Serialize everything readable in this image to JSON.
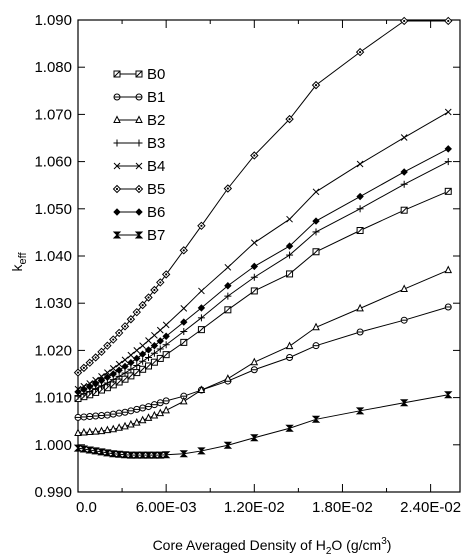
{
  "chart_data": {
    "type": "line",
    "xlabel_parts": [
      "Core Averaged Density of H",
      "2",
      "O (g/cm",
      "3",
      ")"
    ],
    "ylabel_parts": [
      "k",
      "eff"
    ],
    "xlim": [
      0,
      0.026
    ],
    "ylim": [
      0.99,
      1.09
    ],
    "x_ticks": [
      {
        "value": 0,
        "label": "0.0"
      },
      {
        "value": 0.006,
        "label": "6.00E-03"
      },
      {
        "value": 0.012,
        "label": "1.20E-02"
      },
      {
        "value": 0.018,
        "label": "1.80E-02"
      },
      {
        "value": 0.024,
        "label": "2.40E-02"
      }
    ],
    "x_minor_ticks": [
      0.003,
      0.009,
      0.015,
      0.021
    ],
    "y_ticks": [
      {
        "value": 0.99,
        "label": "0.990"
      },
      {
        "value": 1.0,
        "label": "1.000"
      },
      {
        "value": 1.01,
        "label": "1.010"
      },
      {
        "value": 1.02,
        "label": "1.020"
      },
      {
        "value": 1.03,
        "label": "1.030"
      },
      {
        "value": 1.04,
        "label": "1.040"
      },
      {
        "value": 1.05,
        "label": "1.050"
      },
      {
        "value": 1.06,
        "label": "1.060"
      },
      {
        "value": 1.07,
        "label": "1.070"
      },
      {
        "value": 1.08,
        "label": "1.080"
      },
      {
        "value": 1.09,
        "label": "1.090"
      }
    ],
    "grid": false,
    "legend_position": "top-left",
    "series": [
      {
        "name": "B0",
        "marker": "square",
        "points": [
          [
            0,
            1.0098
          ],
          [
            0.0004,
            1.0102
          ],
          [
            0.0008,
            1.0106
          ],
          [
            0.0012,
            1.0111
          ],
          [
            0.0016,
            1.0116
          ],
          [
            0.002,
            1.0121
          ],
          [
            0.0024,
            1.0127
          ],
          [
            0.0028,
            1.0133
          ],
          [
            0.0032,
            1.0139
          ],
          [
            0.0036,
            1.0146
          ],
          [
            0.004,
            1.0153
          ],
          [
            0.0044,
            1.016
          ],
          [
            0.0048,
            1.0167
          ],
          [
            0.0052,
            1.0175
          ],
          [
            0.0056,
            1.0183
          ],
          [
            0.006,
            1.0191
          ],
          [
            0.0072,
            1.0217
          ],
          [
            0.0084,
            1.0244
          ],
          [
            0.0102,
            1.0286
          ],
          [
            0.012,
            1.0326
          ],
          [
            0.0144,
            1.0362
          ],
          [
            0.0162,
            1.0409
          ],
          [
            0.0192,
            1.0454
          ],
          [
            0.0222,
            1.0497
          ],
          [
            0.0252,
            1.0537
          ]
        ]
      },
      {
        "name": "B1",
        "marker": "circle",
        "points": [
          [
            0,
            1.0058
          ],
          [
            0.0004,
            1.0059
          ],
          [
            0.0008,
            1.006
          ],
          [
            0.0012,
            1.0061
          ],
          [
            0.0016,
            1.0062
          ],
          [
            0.002,
            1.0063
          ],
          [
            0.0024,
            1.0065
          ],
          [
            0.0028,
            1.0067
          ],
          [
            0.0032,
            1.0069
          ],
          [
            0.0036,
            1.0072
          ],
          [
            0.004,
            1.0075
          ],
          [
            0.0044,
            1.0078
          ],
          [
            0.0048,
            1.0081
          ],
          [
            0.0052,
            1.0085
          ],
          [
            0.0056,
            1.0089
          ],
          [
            0.006,
            1.0093
          ],
          [
            0.0072,
            1.0103
          ],
          [
            0.0084,
            1.0116
          ],
          [
            0.0102,
            1.0135
          ],
          [
            0.012,
            1.0159
          ],
          [
            0.0144,
            1.0185
          ],
          [
            0.0162,
            1.021
          ],
          [
            0.0192,
            1.0239
          ],
          [
            0.0222,
            1.0264
          ],
          [
            0.0252,
            1.0292
          ]
        ]
      },
      {
        "name": "B2",
        "marker": "triangle",
        "points": [
          [
            0,
            1.0025
          ],
          [
            0.0004,
            1.0026
          ],
          [
            0.0008,
            1.0027
          ],
          [
            0.0012,
            1.0028
          ],
          [
            0.0016,
            1.0029
          ],
          [
            0.002,
            1.0031
          ],
          [
            0.0024,
            1.0033
          ],
          [
            0.0028,
            1.0036
          ],
          [
            0.0032,
            1.0039
          ],
          [
            0.0036,
            1.0043
          ],
          [
            0.004,
            1.0047
          ],
          [
            0.0044,
            1.0052
          ],
          [
            0.0048,
            1.0057
          ],
          [
            0.0052,
            1.0062
          ],
          [
            0.0056,
            1.0067
          ],
          [
            0.006,
            1.0073
          ],
          [
            0.0072,
            1.0092
          ],
          [
            0.0084,
            1.0116
          ],
          [
            0.0102,
            1.014
          ],
          [
            0.012,
            1.0175
          ],
          [
            0.0144,
            1.0209
          ],
          [
            0.0162,
            1.0249
          ],
          [
            0.0192,
            1.0289
          ],
          [
            0.0222,
            1.033
          ],
          [
            0.0252,
            1.037
          ]
        ]
      },
      {
        "name": "B3",
        "marker": "plus",
        "points": [
          [
            0,
            1.0103
          ],
          [
            0.0004,
            1.0108
          ],
          [
            0.0008,
            1.0113
          ],
          [
            0.0012,
            1.0119
          ],
          [
            0.0016,
            1.0125
          ],
          [
            0.002,
            1.0131
          ],
          [
            0.0024,
            1.0138
          ],
          [
            0.0028,
            1.0145
          ],
          [
            0.0032,
            1.0152
          ],
          [
            0.0036,
            1.016
          ],
          [
            0.004,
            1.0168
          ],
          [
            0.0044,
            1.0177
          ],
          [
            0.0048,
            1.0185
          ],
          [
            0.0052,
            1.0194
          ],
          [
            0.0056,
            1.0203
          ],
          [
            0.006,
            1.0212
          ],
          [
            0.0072,
            1.024
          ],
          [
            0.0084,
            1.0269
          ],
          [
            0.0102,
            1.0315
          ],
          [
            0.012,
            1.0355
          ],
          [
            0.0144,
            1.0402
          ],
          [
            0.0162,
            1.0451
          ],
          [
            0.0192,
            1.05
          ],
          [
            0.0222,
            1.0552
          ],
          [
            0.0252,
            1.06
          ]
        ]
      },
      {
        "name": "B4",
        "marker": "x",
        "points": [
          [
            0,
            1.0118
          ],
          [
            0.0004,
            1.0124
          ],
          [
            0.0008,
            1.013
          ],
          [
            0.0012,
            1.0137
          ],
          [
            0.0016,
            1.0145
          ],
          [
            0.002,
            1.0153
          ],
          [
            0.0024,
            1.0162
          ],
          [
            0.0028,
            1.0171
          ],
          [
            0.0032,
            1.018
          ],
          [
            0.0036,
            1.019
          ],
          [
            0.004,
            1.02
          ],
          [
            0.0044,
            1.021
          ],
          [
            0.0048,
            1.0221
          ],
          [
            0.0052,
            1.0232
          ],
          [
            0.0056,
            1.0243
          ],
          [
            0.006,
            1.0254
          ],
          [
            0.0072,
            1.0289
          ],
          [
            0.0084,
            1.0326
          ],
          [
            0.0102,
            1.0376
          ],
          [
            0.012,
            1.0428
          ],
          [
            0.0144,
            1.0478
          ],
          [
            0.0162,
            1.0536
          ],
          [
            0.0192,
            1.0595
          ],
          [
            0.0222,
            1.0651
          ],
          [
            0.0252,
            1.0705
          ]
        ]
      },
      {
        "name": "B5",
        "marker": "diamond",
        "points": [
          [
            0,
            1.0153
          ],
          [
            0.0004,
            1.0163
          ],
          [
            0.0008,
            1.0174
          ],
          [
            0.0012,
            1.0185
          ],
          [
            0.0016,
            1.0197
          ],
          [
            0.002,
            1.021
          ],
          [
            0.0024,
            1.0223
          ],
          [
            0.0028,
            1.0237
          ],
          [
            0.0032,
            1.0251
          ],
          [
            0.0036,
            1.0266
          ],
          [
            0.004,
            1.0281
          ],
          [
            0.0044,
            1.0296
          ],
          [
            0.0048,
            1.0312
          ],
          [
            0.0052,
            1.0328
          ],
          [
            0.0056,
            1.0344
          ],
          [
            0.006,
            1.0361
          ],
          [
            0.0072,
            1.0412
          ],
          [
            0.0084,
            1.0464
          ],
          [
            0.0102,
            1.0543
          ],
          [
            0.012,
            1.0613
          ],
          [
            0.0144,
            1.069
          ],
          [
            0.0162,
            1.0762
          ],
          [
            0.0192,
            1.0832
          ],
          [
            0.0222,
            1.0898
          ],
          [
            0.0252,
            1.0898
          ]
        ]
      },
      {
        "name": "B6",
        "marker": "filled-diamond",
        "points": [
          [
            0,
            1.0112
          ],
          [
            0.0004,
            1.0117
          ],
          [
            0.0008,
            1.0123
          ],
          [
            0.0012,
            1.0129
          ],
          [
            0.0016,
            1.0136
          ],
          [
            0.002,
            1.0143
          ],
          [
            0.0024,
            1.015
          ],
          [
            0.0028,
            1.0158
          ],
          [
            0.0032,
            1.0166
          ],
          [
            0.0036,
            1.0174
          ],
          [
            0.004,
            1.0183
          ],
          [
            0.0044,
            1.0192
          ],
          [
            0.0048,
            1.0201
          ],
          [
            0.0052,
            1.021
          ],
          [
            0.0056,
            1.022
          ],
          [
            0.006,
            1.023
          ],
          [
            0.0072,
            1.026
          ],
          [
            0.0084,
            1.029
          ],
          [
            0.0102,
            1.0337
          ],
          [
            0.012,
            1.0378
          ],
          [
            0.0144,
            1.0421
          ],
          [
            0.0162,
            1.0474
          ],
          [
            0.0192,
            1.0526
          ],
          [
            0.0222,
            1.0578
          ],
          [
            0.0252,
            1.0627
          ]
        ]
      },
      {
        "name": "B7",
        "marker": "hourglass",
        "points": [
          [
            0,
            0.9993
          ],
          [
            0.0004,
            0.9991
          ],
          [
            0.0008,
            0.9989
          ],
          [
            0.0012,
            0.9987
          ],
          [
            0.0016,
            0.9985
          ],
          [
            0.002,
            0.9983
          ],
          [
            0.0024,
            0.9981
          ],
          [
            0.0028,
            0.998
          ],
          [
            0.0032,
            0.9979
          ],
          [
            0.0036,
            0.9978
          ],
          [
            0.004,
            0.9978
          ],
          [
            0.0044,
            0.9978
          ],
          [
            0.0048,
            0.9978
          ],
          [
            0.0052,
            0.9978
          ],
          [
            0.0056,
            0.9978
          ],
          [
            0.006,
            0.9979
          ],
          [
            0.0072,
            0.9981
          ],
          [
            0.0084,
            0.9987
          ],
          [
            0.0102,
            0.9999
          ],
          [
            0.012,
            1.0015
          ],
          [
            0.0144,
            1.0035
          ],
          [
            0.0162,
            1.0054
          ],
          [
            0.0192,
            1.0072
          ],
          [
            0.0222,
            1.0089
          ],
          [
            0.0252,
            1.0106
          ]
        ]
      }
    ]
  }
}
